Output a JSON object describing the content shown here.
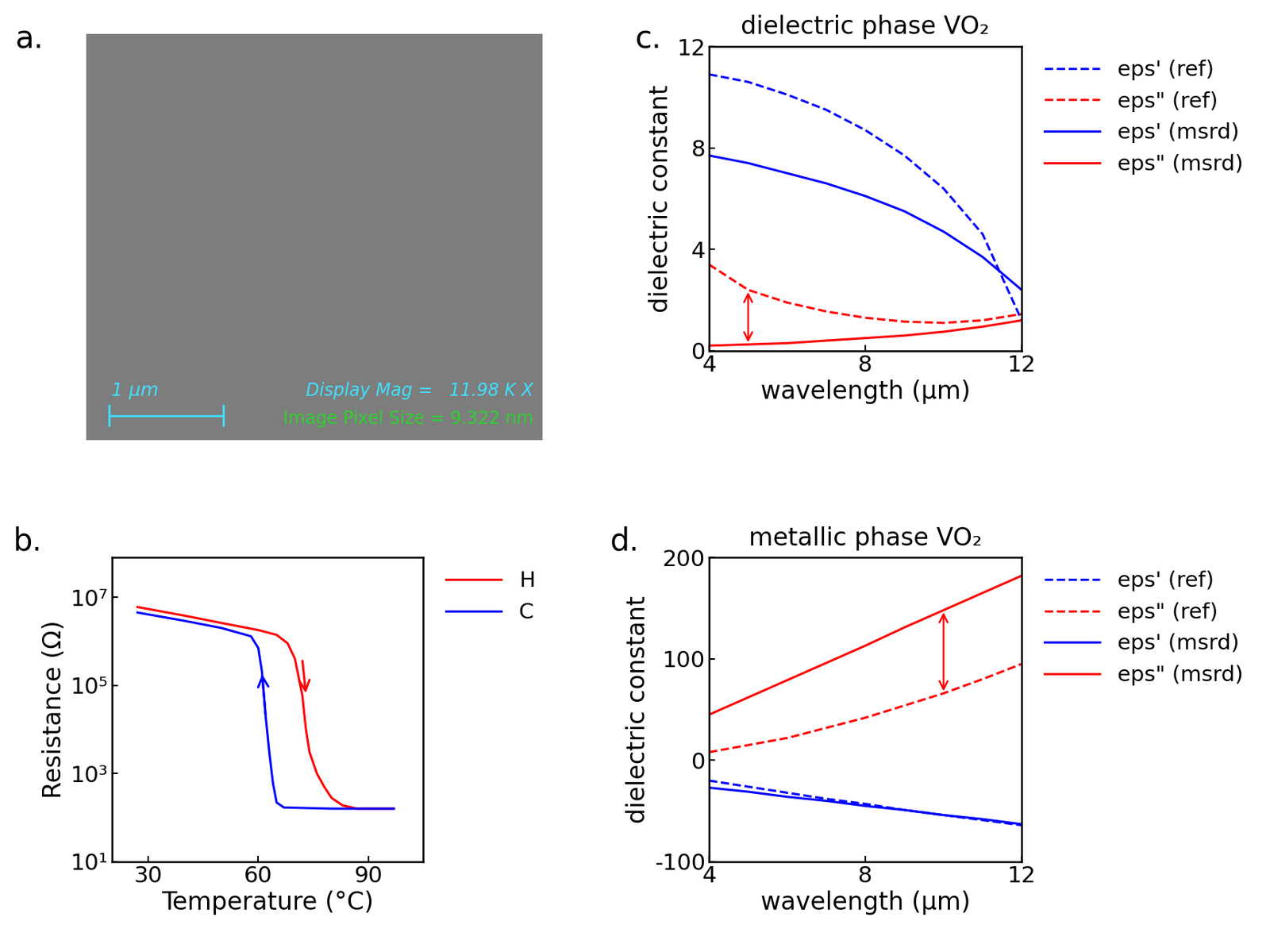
{
  "chart_data": [
    {
      "type": "image",
      "panel": "a.",
      "annotations": [
        "1 μm",
        "Display Mag =   11.98 K X",
        "Image Pixel Size = 9.322 nm"
      ]
    },
    {
      "type": "line",
      "panel": "b.",
      "x_label": "Temperature (°C)",
      "y_label": "Resistance (Ω)",
      "log": "y",
      "legend": "upper left",
      "xlim": [
        20,
        105
      ],
      "xticks": [
        30,
        60,
        90
      ],
      "ylim": [
        10,
        80000000
      ],
      "yticks": [
        {
          "value": 10,
          "label": "10¹"
        },
        {
          "value": 1000,
          "label": "10³"
        },
        {
          "value": 100000,
          "label": "10⁵"
        },
        {
          "value": 10000000,
          "label": "10⁷"
        }
      ],
      "series": [
        {
          "name": "H",
          "color": "#ff0000",
          "line_style": "solid",
          "x": [
            27,
            40,
            50,
            60,
            65,
            68,
            70,
            72,
            73,
            74,
            76,
            78,
            80,
            83,
            87,
            97
          ],
          "values": [
            6000000,
            3800000,
            2600000,
            1800000,
            1400000,
            900000,
            400000,
            60000,
            10000,
            3000,
            1000,
            500,
            280,
            190,
            160,
            160
          ]
        },
        {
          "name": "C",
          "color": "#0000ff",
          "line_style": "solid",
          "x": [
            27,
            40,
            50,
            58,
            60,
            61,
            62,
            63,
            64,
            65,
            67,
            80,
            97
          ],
          "values": [
            4500000,
            2900000,
            2000000,
            1300000,
            700000,
            200000,
            20000,
            3000,
            600,
            220,
            170,
            160,
            160
          ]
        }
      ]
    },
    {
      "type": "line",
      "panel": "c.",
      "title": "dielectric phase VO₂",
      "x_label": "wavelength (μm)",
      "y_label": "dielectric constant",
      "legend": "upper left",
      "xlim": [
        4,
        12
      ],
      "xticks": [
        4,
        8,
        12
      ],
      "ylim": [
        0,
        12
      ],
      "yticks": [
        0,
        4,
        8,
        12
      ],
      "x": [
        4,
        5,
        6,
        7,
        8,
        9,
        10,
        11,
        12
      ],
      "series": [
        {
          "name": "eps' (ref)",
          "color": "#0000ff",
          "line_style": "dashed",
          "values": [
            10.9,
            10.6,
            10.1,
            9.5,
            8.7,
            7.7,
            6.4,
            4.6,
            1.2
          ]
        },
        {
          "name": "eps\" (ref)",
          "color": "#ff0000",
          "line_style": "dashed",
          "values": [
            3.4,
            2.4,
            1.9,
            1.55,
            1.3,
            1.15,
            1.1,
            1.2,
            1.45
          ]
        },
        {
          "name": "eps' (msrd)",
          "color": "#0000ff",
          "line_style": "solid",
          "values": [
            7.7,
            7.4,
            7.0,
            6.6,
            6.1,
            5.5,
            4.7,
            3.7,
            2.4
          ]
        },
        {
          "name": "eps\" (msrd)",
          "color": "#ff0000",
          "line_style": "solid",
          "values": [
            0.2,
            0.25,
            0.3,
            0.4,
            0.5,
            0.6,
            0.75,
            0.95,
            1.2
          ]
        }
      ]
    },
    {
      "type": "line",
      "panel": "d.",
      "title": "metallic phase VO₂",
      "x_label": "wavelength (μm)",
      "y_label": "dielectric constant",
      "legend": "upper left",
      "xlim": [
        4,
        12
      ],
      "xticks": [
        4,
        8,
        12
      ],
      "ylim": [
        -100,
        200
      ],
      "yticks": [
        -100,
        0,
        100,
        200
      ],
      "x": [
        4,
        5,
        6,
        7,
        8,
        9,
        10,
        11,
        12
      ],
      "series": [
        {
          "name": "eps' (ref)",
          "color": "#0000ff",
          "line_style": "dashed",
          "values": [
            -20,
            -26,
            -32,
            -38,
            -43,
            -49,
            -54,
            -59,
            -64
          ]
        },
        {
          "name": "eps\" (ref)",
          "color": "#ff0000",
          "line_style": "dashed",
          "values": [
            8,
            15,
            22,
            32,
            42,
            54,
            66,
            80,
            95
          ]
        },
        {
          "name": "eps' (msrd)",
          "color": "#0000ff",
          "line_style": "solid",
          "values": [
            -27,
            -31,
            -36,
            -40,
            -45,
            -49,
            -54,
            -58,
            -63
          ]
        },
        {
          "name": "eps\" (msrd)",
          "color": "#ff0000",
          "line_style": "solid",
          "values": [
            45,
            62,
            79,
            96,
            113,
            131,
            148,
            165,
            182
          ]
        }
      ]
    }
  ]
}
